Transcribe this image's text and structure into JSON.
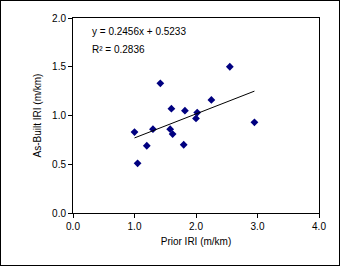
{
  "chart_data": {
    "type": "scatter",
    "x_label": "Prior IRI (m/km)",
    "y_label": "As-Built IRI (m/km)",
    "annotations": [
      "y = 0.2456x + 0.5233",
      "R² = 0.2836"
    ],
    "series": [
      {
        "type": "scatter",
        "marker": "diamond",
        "color": "#000080",
        "x": [
          1.0,
          1.05,
          1.2,
          1.3,
          1.42,
          1.58,
          1.6,
          1.62,
          1.8,
          1.82,
          2.0,
          2.02,
          2.25,
          2.55,
          2.95
        ],
        "values": [
          0.83,
          0.51,
          0.69,
          0.86,
          1.33,
          0.86,
          1.07,
          0.81,
          0.7,
          1.05,
          0.97,
          1.03,
          1.16,
          1.5,
          0.93
        ]
      },
      {
        "type": "line",
        "line_style": "solid",
        "color": "#000000",
        "x": [
          1.0,
          2.95
        ],
        "values": [
          0.77,
          1.25
        ]
      }
    ],
    "xlim": [
      0,
      4
    ],
    "xticks": [
      {
        "value": 0,
        "label": "0.0"
      },
      {
        "value": 1,
        "label": "1.0"
      },
      {
        "value": 2,
        "label": "2.0"
      },
      {
        "value": 3,
        "label": "3.0"
      },
      {
        "value": 4,
        "label": "4.0"
      }
    ],
    "ylim": [
      0,
      2
    ],
    "yticks": [
      {
        "value": 0,
        "label": "0.0"
      },
      {
        "value": 0.5,
        "label": "0.5"
      },
      {
        "value": 1,
        "label": "1.0"
      },
      {
        "value": 1.5,
        "label": "1.5"
      },
      {
        "value": 2,
        "label": "2.0"
      }
    ],
    "grid": false
  }
}
